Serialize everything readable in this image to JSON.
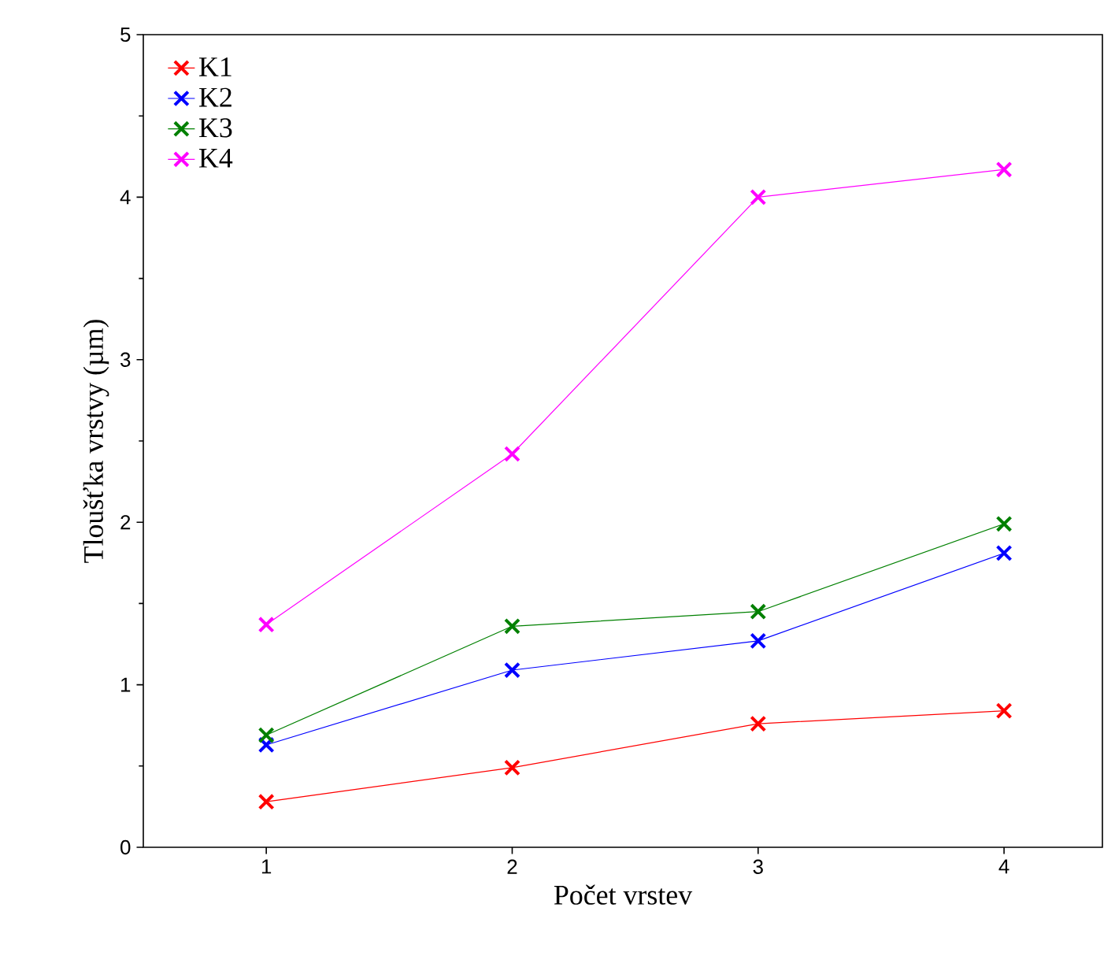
{
  "chart_data": {
    "type": "line",
    "xlabel": "Počet vrstev",
    "ylabel": "Tloušťka vrstvy (µm)",
    "x": [
      1,
      2,
      3,
      4
    ],
    "series": [
      {
        "name": "K1",
        "color": "#ff0000",
        "values": [
          0.28,
          0.49,
          0.76,
          0.84
        ]
      },
      {
        "name": "K2",
        "color": "#0000ff",
        "values": [
          0.63,
          1.09,
          1.27,
          1.81
        ]
      },
      {
        "name": "K3",
        "color": "#008000",
        "values": [
          0.69,
          1.36,
          1.45,
          1.99
        ]
      },
      {
        "name": "K4",
        "color": "#ff00ff",
        "values": [
          1.37,
          2.42,
          4.0,
          4.17
        ]
      }
    ],
    "xlim": [
      0.5,
      4.4
    ],
    "ylim": [
      0,
      5
    ],
    "xticks": [
      1,
      2,
      3,
      4
    ],
    "yticks": [
      0,
      1,
      2,
      3,
      4,
      5
    ],
    "legend": "top left",
    "marker": "cross",
    "line_style": "solid",
    "grid": false
  }
}
